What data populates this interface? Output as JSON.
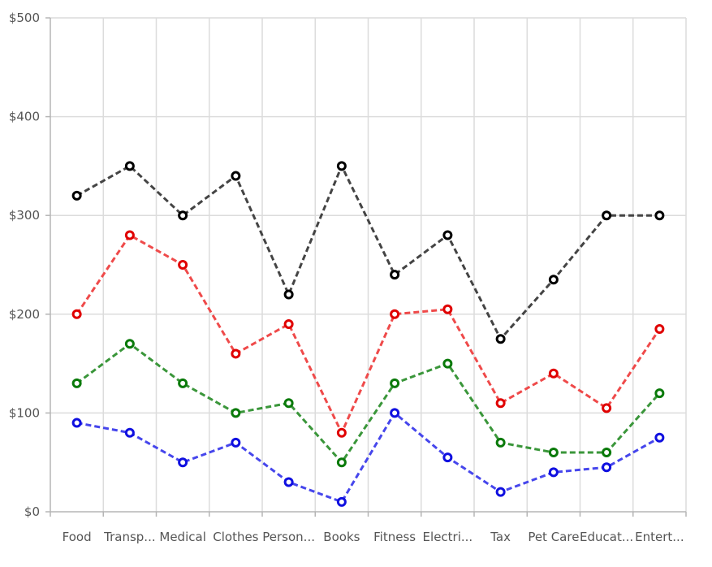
{
  "chart_data": {
    "type": "line",
    "categories": [
      "Food",
      "Transp...",
      "Medical",
      "Clothes",
      "Person...",
      "Books",
      "Fitness",
      "Electri...",
      "Tax",
      "Pet Care",
      "Educat...",
      "Entert..."
    ],
    "ylim": [
      0,
      500
    ],
    "y_ticks": [
      "$0",
      "$100",
      "$200",
      "$300",
      "$400",
      "$500"
    ],
    "y_tick_values": [
      0,
      100,
      200,
      300,
      400,
      500
    ],
    "grid": true,
    "series": [
      {
        "color": "#444444",
        "values": [
          320,
          350,
          300,
          340,
          220,
          350,
          240,
          280,
          175,
          235,
          300,
          300
        ]
      },
      {
        "color": "#ef4a4a",
        "values": [
          200,
          280,
          250,
          160,
          190,
          80,
          200,
          205,
          110,
          140,
          105,
          185
        ]
      },
      {
        "color": "#3a963a",
        "values": [
          130,
          170,
          130,
          100,
          110,
          50,
          130,
          150,
          70,
          60,
          60,
          120
        ]
      },
      {
        "color": "#4646ec",
        "values": [
          90,
          80,
          50,
          70,
          30,
          10,
          100,
          55,
          20,
          40,
          45,
          75
        ]
      }
    ],
    "point_colors": [
      "#000000",
      "#e00000",
      "#0a7a0a",
      "#1010e0"
    ]
  }
}
